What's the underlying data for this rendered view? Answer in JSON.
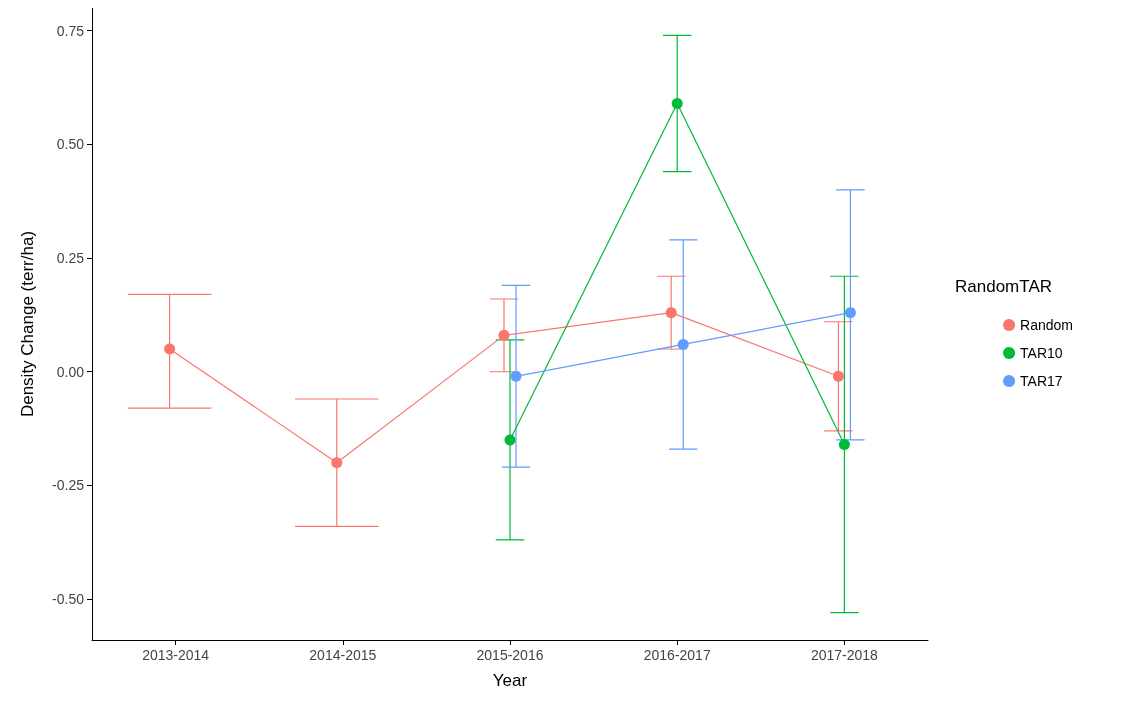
{
  "chart_data": {
    "type": "line",
    "xlabel": "Year",
    "ylabel": "Density Change (terr/ha)",
    "legend_title": "RandomTAR",
    "categories": [
      "2013-2014",
      "2014-2015",
      "2015-2016",
      "2016-2017",
      "2017-2018"
    ],
    "series": [
      {
        "name": "Random",
        "color": "#f8766d",
        "values": [
          0.05,
          -0.2,
          0.08,
          0.13,
          -0.01
        ],
        "errors": [
          [
            -0.08,
            0.17
          ],
          [
            -0.34,
            -0.06
          ],
          [
            0.0,
            0.16
          ],
          [
            0.05,
            0.21
          ],
          [
            -0.13,
            0.11
          ]
        ]
      },
      {
        "name": "TAR10",
        "color": "#00ba38",
        "values": [
          null,
          null,
          -0.15,
          0.59,
          -0.16
        ],
        "errors": [
          null,
          null,
          [
            -0.37,
            0.07
          ],
          [
            0.44,
            0.74
          ],
          [
            -0.53,
            0.21
          ]
        ]
      },
      {
        "name": "TAR17",
        "color": "#619cff",
        "values": [
          null,
          null,
          -0.01,
          0.06,
          0.13
        ],
        "errors": [
          null,
          null,
          [
            -0.21,
            0.19
          ],
          [
            -0.17,
            0.29
          ],
          [
            -0.15,
            0.4
          ]
        ]
      }
    ],
    "ylim": [
      -0.59,
      0.8
    ],
    "yticks": [
      {
        "value": -0.5,
        "label": "-0.50"
      },
      {
        "value": -0.25,
        "label": "-0.25"
      },
      {
        "value": 0,
        "label": "0.00"
      },
      {
        "value": 0.25,
        "label": "0.25"
      },
      {
        "value": 0.5,
        "label": "0.50"
      },
      {
        "value": 0.75,
        "label": "0.75"
      }
    ],
    "grid": false,
    "legend": "right",
    "marker": "circle",
    "line_style": "solid"
  }
}
